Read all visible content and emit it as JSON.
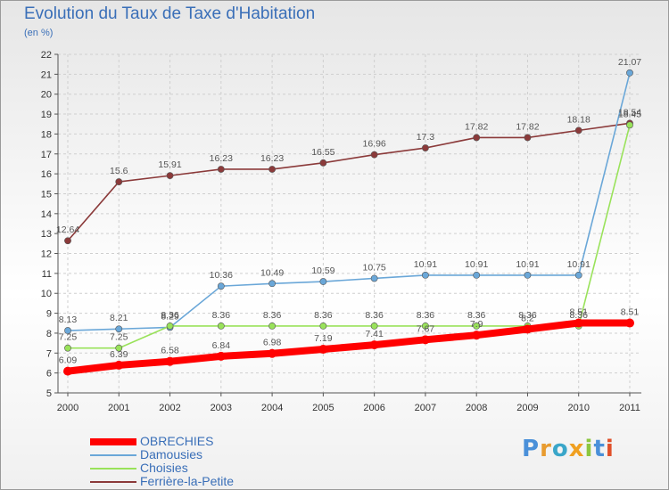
{
  "title": "Evolution du Taux de Taxe d'Habitation",
  "subtitle": "(en %)",
  "logo_text": "Proxiti",
  "chart_data": {
    "type": "line",
    "x": [
      "2000",
      "2001",
      "2002",
      "2003",
      "2004",
      "2005",
      "2006",
      "2007",
      "2008",
      "2009",
      "2010",
      "2011"
    ],
    "ylim": [
      5,
      22
    ],
    "yticks": [
      5,
      6,
      7,
      8,
      9,
      10,
      11,
      12,
      13,
      14,
      15,
      16,
      17,
      18,
      19,
      20,
      21,
      22
    ],
    "grid": true,
    "legend_position": "bottom-left",
    "series": [
      {
        "name": "OBRECHIES",
        "color": "#ff0000",
        "values": [
          6.09,
          6.39,
          6.58,
          6.84,
          6.98,
          7.19,
          7.41,
          7.67,
          7.9,
          8.2,
          8.51,
          8.51
        ],
        "labels": [
          "6.09",
          "6.39",
          "6.58",
          "6.84",
          "6.98",
          "7.19",
          "7.41",
          "7.67",
          "7.9",
          "8.2",
          "8.51",
          "8.51"
        ]
      },
      {
        "name": "Damousies",
        "color": "#6aa7d8",
        "values": [
          8.13,
          8.21,
          8.29,
          10.36,
          10.49,
          10.59,
          10.75,
          10.91,
          10.91,
          10.91,
          10.91,
          21.07
        ],
        "labels": [
          "8.13",
          "8.21",
          "8.29",
          "10.36",
          "10.49",
          "10.59",
          "10.75",
          "10.91",
          "10.91",
          "10.91",
          "10.91",
          "21.07"
        ]
      },
      {
        "name": "Choisies",
        "color": "#99e25a",
        "values": [
          7.25,
          7.25,
          8.36,
          8.36,
          8.36,
          8.36,
          8.36,
          8.36,
          8.36,
          8.36,
          8.36,
          18.45
        ],
        "labels": [
          "7.25",
          "7.25",
          "8.36",
          "8.36",
          "8.36",
          "8.36",
          "8.36",
          "8.36",
          "8.36",
          "8.36",
          "8.36",
          "18.45"
        ]
      },
      {
        "name": "Ferrière-la-Petite",
        "color": "#8b3a3a",
        "values": [
          12.64,
          15.6,
          15.91,
          16.23,
          16.23,
          16.55,
          16.96,
          17.3,
          17.82,
          17.82,
          18.18,
          18.54
        ],
        "labels": [
          "12.64",
          "15.6",
          "15.91",
          "16.23",
          "16.23",
          "16.55",
          "16.96",
          "17.3",
          "17.82",
          "17.82",
          "18.18",
          "18.54"
        ]
      }
    ]
  }
}
